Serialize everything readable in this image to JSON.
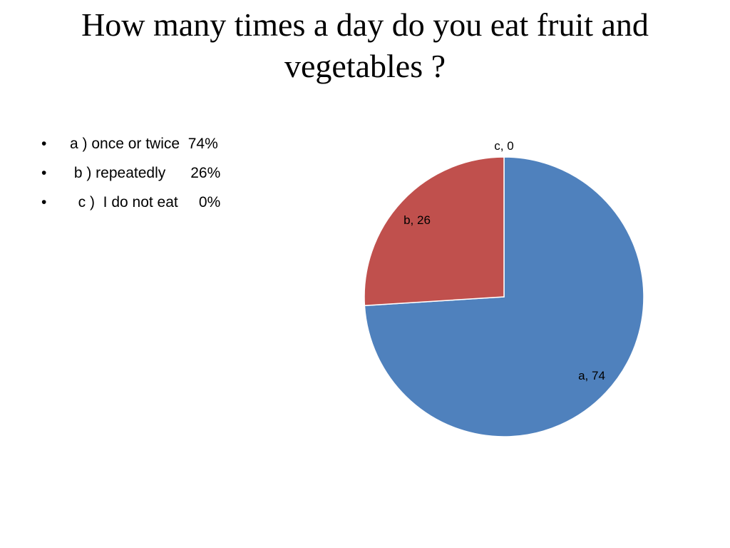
{
  "slide": {
    "title_line1": "How many  times a day do you eat fruit and",
    "title_line2": "vegetables ?"
  },
  "bullets": [
    {
      "marker": "•",
      "text": "a ) once or twice  74%"
    },
    {
      "marker": "•",
      "text": " b ) repeatedly      26%"
    },
    {
      "marker": "•",
      "text": "  c )  I do not eat     0%"
    }
  ],
  "chart_data": {
    "type": "pie",
    "title": "",
    "slices": [
      {
        "label": "a",
        "value": 74,
        "color": "#4F81BD"
      },
      {
        "label": "b",
        "value": 26,
        "color": "#C0504D"
      },
      {
        "label": "c",
        "value": 0,
        "color": "#9BBB59"
      }
    ],
    "data_labels": [
      "a, 74",
      "b, 26",
      "c, 0"
    ],
    "legend": "none"
  }
}
